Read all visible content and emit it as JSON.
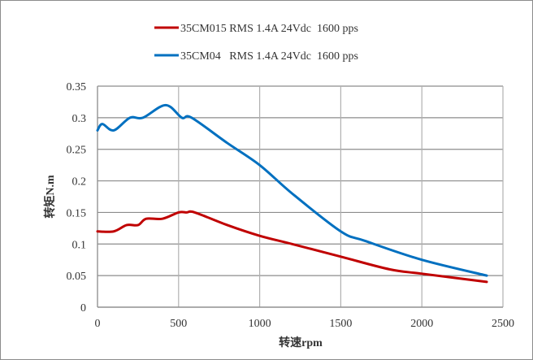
{
  "chart_data": {
    "type": "line",
    "title": "",
    "xlabel": "转速rpm",
    "ylabel": "转矩N.m",
    "xlim": [
      0,
      2500
    ],
    "ylim": [
      0,
      0.35
    ],
    "xticks": [
      0,
      500,
      1000,
      1500,
      2000,
      2500
    ],
    "yticks": [
      0,
      0.05,
      0.1,
      0.15,
      0.2,
      0.25,
      0.3,
      0.35
    ],
    "xtick_labels": [
      "0",
      "500",
      "1000",
      "1500",
      "2000",
      "2500"
    ],
    "ytick_labels": [
      "0",
      "0.05",
      "0.1",
      "0.15",
      "0.2",
      "0.25",
      "0.3",
      "0.35"
    ],
    "grid": true,
    "legend_position": "top",
    "series": [
      {
        "name": "35CM015 RMS 1.4A 24Vdc  1600 pps",
        "color": "#c00000",
        "x": [
          0,
          100,
          180,
          250,
          300,
          400,
          500,
          550,
          600,
          800,
          1000,
          1200,
          1500,
          1800,
          2000,
          2400
        ],
        "y": [
          0.12,
          0.12,
          0.13,
          0.13,
          0.14,
          0.14,
          0.15,
          0.15,
          0.15,
          0.13,
          0.113,
          0.1,
          0.08,
          0.06,
          0.053,
          0.04
        ]
      },
      {
        "name": "35CM04   RMS 1.4A 24Vdc  1600 pps",
        "color": "#0070c0",
        "x": [
          0,
          30,
          100,
          200,
          280,
          420,
          520,
          580,
          800,
          1000,
          1200,
          1500,
          1650,
          2000,
          2400
        ],
        "y": [
          0.28,
          0.29,
          0.28,
          0.3,
          0.3,
          0.32,
          0.3,
          0.3,
          0.26,
          0.225,
          0.18,
          0.12,
          0.105,
          0.075,
          0.05
        ]
      }
    ]
  }
}
